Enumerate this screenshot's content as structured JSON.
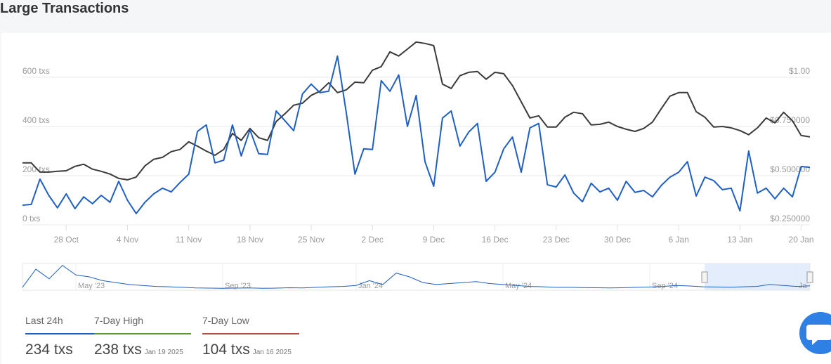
{
  "title": "Large Transactions",
  "chart_data": [
    {
      "type": "line",
      "categories": [
        null,
        null,
        null,
        null,
        null,
        "28 Oct",
        null,
        null,
        null,
        null,
        null,
        null,
        "4 Nov",
        null,
        null,
        null,
        null,
        null,
        null,
        "11 Nov",
        null,
        null,
        null,
        null,
        null,
        null,
        "18 Nov",
        null,
        null,
        null,
        null,
        null,
        null,
        "25 Nov",
        null,
        null,
        null,
        null,
        null,
        null,
        "2 Dec",
        null,
        null,
        null,
        null,
        null,
        null,
        "9 Dec",
        null,
        null,
        null,
        null,
        null,
        null,
        "16 Dec",
        null,
        null,
        null,
        null,
        null,
        null,
        "23 Dec",
        null,
        null,
        null,
        null,
        null,
        null,
        "30 Dec",
        null,
        null,
        null,
        null,
        null,
        null,
        "6 Jan",
        null,
        null,
        null,
        null,
        null,
        null,
        "13 Jan",
        null,
        null,
        null,
        null,
        null,
        null,
        "20 Jan",
        null
      ],
      "series": [
        {
          "color": "#1f5fc4",
          "values": [
            80,
            83,
            186,
            120,
            69,
            126,
            66,
            114,
            86,
            120,
            92,
            177,
            100,
            46,
            92,
            126,
            149,
            134,
            172,
            206,
            380,
            406,
            252,
            263,
            406,
            280,
            386,
            289,
            286,
            463,
            423,
            383,
            532,
            572,
            537,
            543,
            686,
            457,
            206,
            309,
            306,
            586,
            543,
            609,
            400,
            526,
            257,
            157,
            434,
            463,
            320,
            377,
            412,
            177,
            214,
            309,
            357,
            214,
            394,
            412,
            163,
            154,
            203,
            129,
            94,
            169,
            134,
            149,
            100,
            177,
            132,
            140,
            114,
            160,
            194,
            214,
            257,
            117,
            194,
            180,
            143,
            149,
            57,
            300,
            129,
            149,
            106,
            149,
            114,
            237,
            234
          ]
        },
        {
          "color": "#3a3a3a",
          "axis": "y2",
          "values": [
            0.565,
            0.565,
            0.518,
            0.518,
            0.522,
            0.525,
            0.547,
            0.558,
            0.533,
            0.522,
            0.508,
            0.486,
            0.479,
            0.493,
            0.55,
            0.583,
            0.593,
            0.622,
            0.633,
            0.672,
            0.65,
            0.625,
            0.604,
            0.633,
            0.715,
            0.679,
            0.74,
            0.693,
            0.679,
            0.775,
            0.815,
            0.858,
            0.868,
            0.908,
            0.929,
            0.972,
            0.922,
            0.936,
            0.975,
            0.972,
            1.036,
            1.054,
            1.129,
            1.108,
            1.143,
            1.179,
            1.172,
            1.161,
            0.965,
            0.943,
            1.008,
            1.025,
            1.029,
            0.99,
            1.025,
            1.018,
            0.958,
            0.875,
            0.793,
            0.804,
            0.747,
            0.747,
            0.797,
            0.822,
            0.815,
            0.758,
            0.761,
            0.772,
            0.75,
            0.736,
            0.725,
            0.74,
            0.772,
            0.84,
            0.904,
            0.922,
            0.922,
            0.825,
            0.797,
            0.747,
            0.75,
            0.743,
            0.729,
            0.708,
            0.743,
            0.793,
            0.768,
            0.822,
            0.779,
            0.704,
            0.697
          ]
        }
      ],
      "ylim": [
        0,
        771
      ],
      "yticks": [
        {
          "value": 0,
          "label": "0 txs"
        },
        {
          "value": 200,
          "label": "200 txs"
        },
        {
          "value": 400,
          "label": "400 txs"
        },
        {
          "value": 600,
          "label": "600 txs"
        }
      ],
      "y2lim": [
        0.25,
        1.214
      ],
      "y2ticks": [
        {
          "value": 0.25,
          "label": "$0.250000"
        },
        {
          "value": 0.5,
          "label": "$0.500000"
        },
        {
          "value": 0.75,
          "label": "$0.750000"
        },
        {
          "value": 1,
          "label": "$1.00"
        }
      ],
      "grid": true
    },
    {
      "type": "line",
      "categories": [
        null,
        null,
        null,
        null,
        "May '23",
        null,
        null,
        null,
        null,
        null,
        null,
        null,
        null,
        null,
        null,
        "Sep '23",
        null,
        null,
        null,
        null,
        null,
        null,
        null,
        null,
        null,
        "Jan '24",
        null,
        null,
        null,
        null,
        null,
        null,
        null,
        null,
        null,
        null,
        "May '24",
        null,
        null,
        null,
        null,
        null,
        null,
        null,
        null,
        null,
        null,
        "Sep '24",
        null,
        null,
        null,
        null,
        null,
        null,
        null,
        null,
        null,
        null,
        "Ja",
        null
      ],
      "series": [
        {
          "color": "#1f5fc4",
          "values": [
            150,
            1100,
            600,
            1300,
            800,
            700,
            500,
            400,
            300,
            250,
            200,
            180,
            150,
            120,
            110,
            100,
            110,
            120,
            100,
            110,
            130,
            120,
            150,
            180,
            200,
            250,
            500,
            300,
            900,
            700,
            400,
            300,
            350,
            400,
            450,
            350,
            300,
            250,
            200,
            180,
            150,
            150,
            140,
            130,
            120,
            130,
            150,
            170,
            200,
            250,
            220,
            180,
            170,
            160,
            180,
            200,
            300,
            250,
            200,
            230
          ]
        }
      ],
      "ylim": [
        0,
        1400
      ]
    }
  ],
  "stats": [
    {
      "label": "Last 24h",
      "value": "234 txs",
      "color": "#1f5fc4"
    },
    {
      "label": "7-Day High",
      "value": "238 txs",
      "date": "Jan 19 2025",
      "color": "#5a9a3a"
    },
    {
      "label": "7-Day Low",
      "value": "104 txs",
      "date": "Jan 16 2025",
      "color": "#b0503e"
    }
  ]
}
